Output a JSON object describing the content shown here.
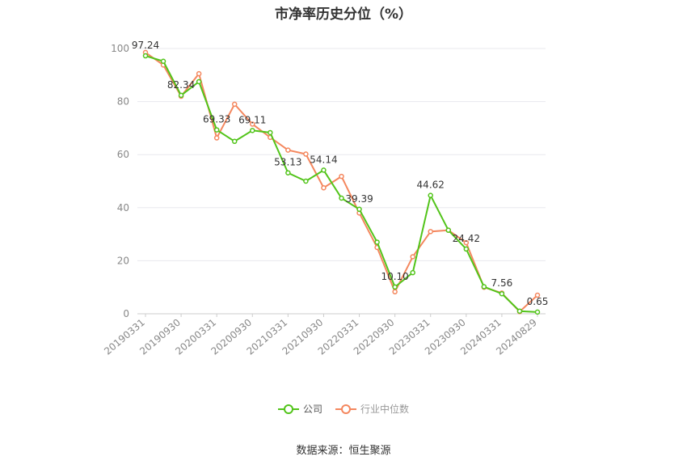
{
  "title": "市净率历史分位（%）",
  "source": "数据来源：恒生聚源",
  "colors": {
    "company": "#52c41a",
    "industry": "#f4875e",
    "grid": "#e8e8ee",
    "axis_text": "#888888",
    "label_text": "#333333"
  },
  "chart_data": {
    "type": "line",
    "title": "市净率历史分位（%）",
    "xlabel": "",
    "ylabel": "",
    "ylim": [
      0,
      100
    ],
    "yticks": [
      0,
      20,
      40,
      60,
      80,
      100
    ],
    "grid": true,
    "legend_position": "bottom",
    "x_tick_labels": [
      "20190331",
      "20190930",
      "20200331",
      "20200930",
      "20210331",
      "20210930",
      "20220331",
      "20220930",
      "20230331",
      "20230930",
      "20240331",
      "20240829"
    ],
    "x": [
      "20190331",
      "20190630",
      "20190930",
      "20191231",
      "20200331",
      "20200630",
      "20200930",
      "20201231",
      "20210331",
      "20210630",
      "20210930",
      "20211231",
      "20220331",
      "20220630",
      "20220930",
      "20221231",
      "20230331",
      "20230630",
      "20230930",
      "20231231",
      "20240331",
      "20240630",
      "20240829"
    ],
    "series": [
      {
        "name": "公司",
        "values": [
          97.24,
          95.2,
          82.34,
          87.5,
          69.33,
          65.0,
          69.11,
          68.3,
          53.13,
          50.0,
          54.14,
          43.6,
          39.39,
          27.0,
          10.1,
          15.5,
          44.62,
          31.5,
          24.42,
          10.2,
          7.56,
          1.0,
          0.65
        ]
      },
      {
        "name": "行业中位数",
        "values": [
          98.5,
          93.8,
          82.0,
          90.5,
          66.3,
          79.0,
          71.5,
          66.5,
          61.7,
          60.2,
          47.5,
          51.8,
          38.0,
          25.0,
          8.3,
          21.5,
          31.0,
          31.5,
          26.8,
          10.0,
          7.8,
          0.8,
          7.0
        ]
      }
    ],
    "data_labels": [
      {
        "index": 0,
        "text": "97.24"
      },
      {
        "index": 2,
        "text": "82.34"
      },
      {
        "index": 4,
        "text": "69.33"
      },
      {
        "index": 6,
        "text": "69.11"
      },
      {
        "index": 8,
        "text": "53.13"
      },
      {
        "index": 10,
        "text": "54.14"
      },
      {
        "index": 12,
        "text": "39.39"
      },
      {
        "index": 14,
        "text": "10.10"
      },
      {
        "index": 16,
        "text": "44.62"
      },
      {
        "index": 18,
        "text": "24.42"
      },
      {
        "index": 20,
        "text": "7.56"
      },
      {
        "index": 22,
        "text": "0.65"
      }
    ]
  }
}
